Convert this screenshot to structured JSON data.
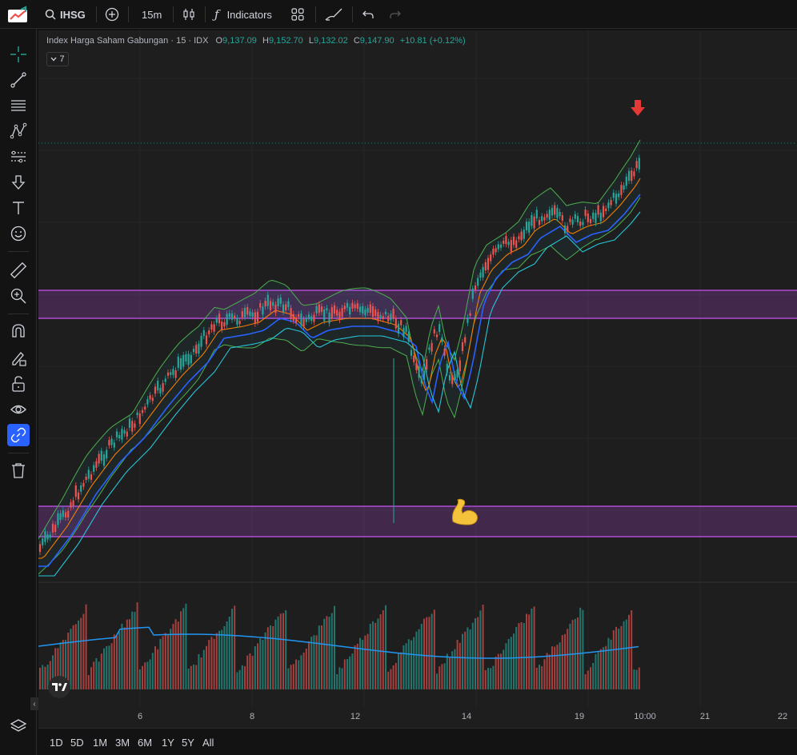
{
  "toolbar": {
    "symbol": "IHSG",
    "interval": "15m",
    "indicators_label": "Indicators"
  },
  "legend": {
    "name": "Index Harga Saham Gabungan",
    "timeframe": "15",
    "exchange": "IDX",
    "o_label": "O",
    "o_value": "9,137.09",
    "h_label": "H",
    "h_value": "9,152.70",
    "l_label": "L",
    "l_value": "9,132.02",
    "c_label": "C",
    "c_value": "9,147.90",
    "change": "+10.81 (+0.12%)",
    "indicator_count": "7"
  },
  "xaxis": {
    "ticks": [
      "6",
      "8",
      "12",
      "14",
      "19",
      "10:00",
      "21",
      "22"
    ]
  },
  "ranges": [
    "1D",
    "5D",
    "1M",
    "3M",
    "6M",
    "1Y",
    "5Y",
    "All"
  ],
  "colors": {
    "up": "#26a69a",
    "down": "#ef5350",
    "zone": "#b04bd6",
    "bollinger": "#4caf50",
    "ma_orange": "#f57c00",
    "ma_blue": "#2962ff",
    "ma_cyan": "#26c6da"
  },
  "annotations": {
    "flex_emoji": "💪"
  }
}
